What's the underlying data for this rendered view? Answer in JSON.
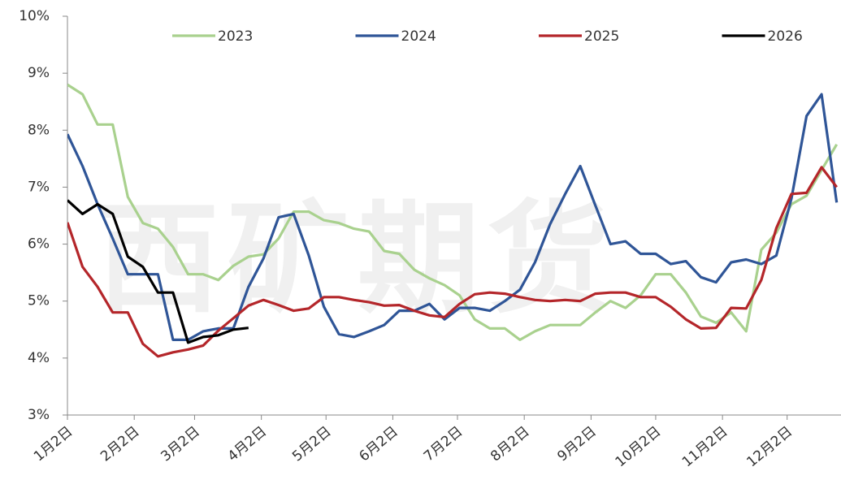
{
  "chart_data": {
    "type": "line",
    "watermark": "西矿期货",
    "x": [
      2,
      9,
      16,
      23,
      30,
      37,
      44,
      51,
      58,
      65,
      72,
      79,
      86,
      93,
      100,
      107,
      114,
      121,
      128,
      135,
      142,
      149,
      156,
      163,
      170,
      177,
      184,
      191,
      198,
      205,
      212,
      219,
      226,
      233,
      240,
      247,
      254,
      261,
      268,
      275,
      282,
      289,
      296,
      303,
      310,
      317,
      324,
      331,
      338,
      345,
      352,
      359
    ],
    "xlim": [
      2,
      361
    ],
    "xticks": [
      {
        "value": 2,
        "label": "1月2日"
      },
      {
        "value": 33,
        "label": "2月2日"
      },
      {
        "value": 61,
        "label": "3月2日"
      },
      {
        "value": 92,
        "label": "4月2日"
      },
      {
        "value": 122,
        "label": "5月2日"
      },
      {
        "value": 153,
        "label": "6月2日"
      },
      {
        "value": 183,
        "label": "7月2日"
      },
      {
        "value": 214,
        "label": "8月2日"
      },
      {
        "value": 245,
        "label": "9月2日"
      },
      {
        "value": 275,
        "label": "10月2日"
      },
      {
        "value": 306,
        "label": "11月2日"
      },
      {
        "value": 336,
        "label": "12月2日"
      }
    ],
    "ylim": [
      3,
      10
    ],
    "yticks": [
      {
        "value": 3,
        "label": "3%"
      },
      {
        "value": 4,
        "label": "4%"
      },
      {
        "value": 5,
        "label": "5%"
      },
      {
        "value": 6,
        "label": "6%"
      },
      {
        "value": 7,
        "label": "7%"
      },
      {
        "value": 8,
        "label": "8%"
      },
      {
        "value": 9,
        "label": "9%"
      },
      {
        "value": 10,
        "label": "10%"
      }
    ],
    "legend": "top",
    "series": [
      {
        "name": "2023",
        "color": "#a9d18e",
        "values": [
          8.8,
          8.63,
          8.1,
          8.1,
          6.83,
          6.37,
          6.27,
          5.95,
          5.47,
          5.47,
          5.37,
          5.62,
          5.78,
          5.82,
          6.1,
          6.57,
          6.57,
          6.42,
          6.37,
          6.27,
          6.22,
          5.88,
          5.83,
          5.55,
          5.4,
          5.28,
          5.1,
          4.68,
          4.52,
          4.52,
          4.32,
          4.47,
          4.58,
          4.58,
          4.58,
          4.8,
          5.0,
          4.88,
          5.1,
          5.47,
          5.47,
          5.15,
          4.73,
          4.62,
          4.8,
          4.47,
          5.9,
          6.2,
          6.7,
          6.85,
          7.3,
          7.75
        ]
      },
      {
        "name": "2024",
        "color": "#2f5597",
        "values": [
          7.93,
          7.37,
          6.7,
          6.1,
          5.47,
          5.47,
          5.47,
          4.32,
          4.32,
          4.47,
          4.52,
          4.52,
          5.25,
          5.75,
          6.47,
          6.53,
          5.8,
          4.9,
          4.42,
          4.37,
          4.47,
          4.58,
          4.83,
          4.83,
          4.95,
          4.68,
          4.88,
          4.88,
          4.83,
          5.0,
          5.2,
          5.68,
          6.35,
          6.88,
          7.37,
          6.68,
          6.0,
          6.05,
          5.83,
          5.83,
          5.65,
          5.7,
          5.42,
          5.33,
          5.68,
          5.73,
          5.65,
          5.8,
          6.8,
          8.25,
          8.63,
          6.73
        ]
      },
      {
        "name": "2025",
        "color": "#b4262a",
        "values": [
          6.38,
          5.6,
          5.25,
          4.8,
          4.8,
          4.25,
          4.03,
          4.1,
          4.15,
          4.22,
          4.48,
          4.7,
          4.92,
          5.02,
          4.93,
          4.83,
          4.87,
          5.07,
          5.07,
          5.02,
          4.98,
          4.92,
          4.93,
          4.83,
          4.75,
          4.72,
          4.95,
          5.12,
          5.15,
          5.13,
          5.07,
          5.02,
          5.0,
          5.02,
          5.0,
          5.13,
          5.15,
          5.15,
          5.07,
          5.07,
          4.9,
          4.68,
          4.52,
          4.53,
          4.88,
          4.87,
          5.37,
          6.28,
          6.88,
          6.9,
          7.35,
          7.0
        ]
      },
      {
        "name": "2026",
        "color": "#000000",
        "values": [
          6.77,
          6.53,
          6.7,
          6.53,
          5.78,
          5.6,
          5.15,
          5.15,
          4.27,
          4.37,
          4.4,
          4.5,
          4.53,
          null,
          null,
          null,
          null,
          null,
          null,
          null,
          null,
          null,
          null,
          null,
          null,
          null,
          null,
          null,
          null,
          null,
          null,
          null,
          null,
          null,
          null,
          null,
          null,
          null,
          null,
          null,
          null,
          null,
          null,
          null,
          null,
          null,
          null,
          null,
          null,
          null,
          null,
          null
        ]
      }
    ]
  }
}
